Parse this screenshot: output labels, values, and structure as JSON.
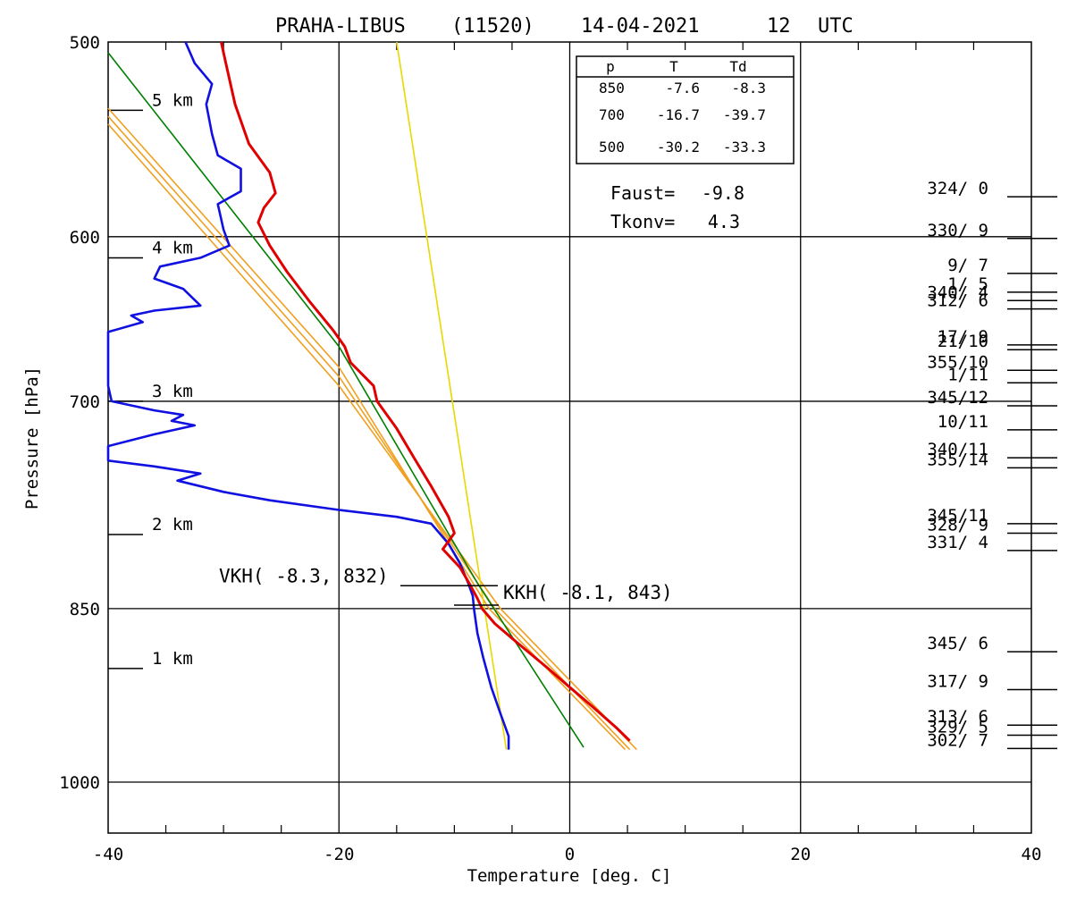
{
  "title": {
    "station": "PRAHA-LIBUS",
    "station_id": "(11520)",
    "date": "14-04-2021",
    "hour": "12",
    "tz": "UTC"
  },
  "colors": {
    "temperature": "#e00000",
    "dewpoint": "#1010e0",
    "dry_adiabat": "#f0a020",
    "moist_line": "#008000",
    "mixing_line": "#e8d800",
    "grid": "#000000"
  },
  "chart_data": {
    "type": "line",
    "xlabel": "Temperature [deg. C]",
    "ylabel": "Pressure [hPa]",
    "xlim": [
      -40,
      40
    ],
    "ylim": [
      1000,
      500
    ],
    "y_scale": "log",
    "x_ticks": [
      "-40",
      "-20",
      "0",
      "20",
      "40"
    ],
    "y_ticks": [
      "500",
      "600",
      "700",
      "850",
      "1000"
    ],
    "grid": true,
    "height_marks": [
      {
        "label": "5 km",
        "p": 533
      },
      {
        "label": "4 km",
        "p": 612
      },
      {
        "label": "3 km",
        "p": 700
      },
      {
        "label": "2 km",
        "p": 793
      },
      {
        "label": "1 km",
        "p": 899
      }
    ],
    "table": {
      "headers": [
        "p",
        "T",
        "Td"
      ],
      "rows": [
        [
          "850",
          "-7.6",
          "-8.3"
        ],
        [
          "700",
          "-16.7",
          "-39.7"
        ],
        [
          "500",
          "-30.2",
          "-33.3"
        ]
      ]
    },
    "info": [
      {
        "label": "Faust=",
        "value": "-9.8"
      },
      {
        "label": "Tkonv=",
        "value": "4.3"
      }
    ],
    "levels": [
      {
        "label": "VKH( -8.3, 832)",
        "t": -8.3,
        "p": 832
      },
      {
        "label": "KKH( -8.1, 843)",
        "t": -8.1,
        "p": 843
      }
    ],
    "winds": [
      {
        "label": "324/ 0",
        "p": 578
      },
      {
        "label": "330/ 9",
        "p": 601
      },
      {
        "label": "9/ 7",
        "p": 621
      },
      {
        "label": "1/ 5",
        "p": 632
      },
      {
        "label": "340/ 4",
        "p": 637
      },
      {
        "label": "312/ 6",
        "p": 642
      },
      {
        "label": "17/ 9",
        "p": 664
      },
      {
        "label": "21/10",
        "p": 667
      },
      {
        "label": "355/10",
        "p": 680
      },
      {
        "label": "1/11",
        "p": 688
      },
      {
        "label": "345/12",
        "p": 703
      },
      {
        "label": "10/11",
        "p": 719
      },
      {
        "label": "340/11",
        "p": 738
      },
      {
        "label": "355/14",
        "p": 745
      },
      {
        "label": "345/11",
        "p": 785
      },
      {
        "label": "328/ 9",
        "p": 792
      },
      {
        "label": "331/ 4",
        "p": 805
      },
      {
        "label": "345/ 6",
        "p": 885
      },
      {
        "label": "317/ 9",
        "p": 917
      },
      {
        "label": "313/ 6",
        "p": 948
      },
      {
        "label": "329/ 5",
        "p": 957
      },
      {
        "label": "302/ 7",
        "p": 969
      }
    ],
    "series": [
      {
        "name": "T",
        "points": [
          [
            -30.2,
            500
          ],
          [
            -29.8,
            510
          ],
          [
            -29.0,
            530
          ],
          [
            -27.8,
            550
          ],
          [
            -26.0,
            565
          ],
          [
            -25.5,
            576
          ],
          [
            -26.5,
            584
          ],
          [
            -27.0,
            592
          ],
          [
            -26.0,
            605
          ],
          [
            -24.5,
            620
          ],
          [
            -22.5,
            638
          ],
          [
            -20.5,
            655
          ],
          [
            -19.5,
            665
          ],
          [
            -19.0,
            675
          ],
          [
            -17.0,
            690
          ],
          [
            -16.7,
            700
          ],
          [
            -15.0,
            718
          ],
          [
            -13.5,
            738
          ],
          [
            -12.0,
            758
          ],
          [
            -10.5,
            780
          ],
          [
            -10.0,
            792
          ],
          [
            -11.0,
            804
          ],
          [
            -9.5,
            818
          ],
          [
            -8.6,
            832
          ],
          [
            -8.0,
            842
          ],
          [
            -7.6,
            850
          ],
          [
            -6.5,
            862
          ],
          [
            -4.5,
            878
          ],
          [
            -2.0,
            898
          ],
          [
            0.0,
            915
          ],
          [
            2.0,
            932
          ],
          [
            4.0,
            950
          ],
          [
            5.2,
            962
          ]
        ]
      },
      {
        "name": "Td",
        "points": [
          [
            -33.3,
            500
          ],
          [
            -32.5,
            510
          ],
          [
            -31.0,
            520
          ],
          [
            -31.5,
            530
          ],
          [
            -31.0,
            545
          ],
          [
            -30.5,
            556
          ],
          [
            -28.5,
            563
          ],
          [
            -28.5,
            575
          ],
          [
            -30.5,
            582
          ],
          [
            -30.0,
            596
          ],
          [
            -29.5,
            605
          ],
          [
            -32.0,
            612
          ],
          [
            -35.5,
            617
          ],
          [
            -36.0,
            624
          ],
          [
            -33.5,
            630
          ],
          [
            -32.0,
            640
          ],
          [
            -36.0,
            643
          ],
          [
            -38.0,
            646
          ],
          [
            -37.0,
            650
          ],
          [
            -40.0,
            656
          ],
          [
            -40.0,
            670
          ],
          [
            -40.0,
            690
          ],
          [
            -39.7,
            700
          ],
          [
            -36.0,
            706
          ],
          [
            -33.5,
            709
          ],
          [
            -34.5,
            713
          ],
          [
            -32.5,
            716
          ],
          [
            -36.0,
            722
          ],
          [
            -38.5,
            727
          ],
          [
            -40.0,
            730
          ],
          [
            -40.0,
            740
          ],
          [
            -36.0,
            744
          ],
          [
            -32.0,
            749
          ],
          [
            -34.0,
            754
          ],
          [
            -30.0,
            762
          ],
          [
            -26.0,
            768
          ],
          [
            -20.0,
            775
          ],
          [
            -15.0,
            780
          ],
          [
            -12.0,
            785
          ],
          [
            -10.5,
            800
          ],
          [
            -9.5,
            815
          ],
          [
            -8.8,
            830
          ],
          [
            -8.4,
            840
          ],
          [
            -8.3,
            850
          ],
          [
            -8.0,
            870
          ],
          [
            -7.5,
            890
          ],
          [
            -6.8,
            915
          ],
          [
            -6.0,
            938
          ],
          [
            -5.3,
            958
          ],
          [
            -5.3,
            970
          ]
        ]
      },
      {
        "name": "adiabat-1",
        "points": [
          [
            -40.0,
            536
          ],
          [
            -20.0,
            684
          ],
          [
            -6.5,
            850
          ],
          [
            5.2,
            970
          ]
        ]
      },
      {
        "name": "adiabat-2",
        "points": [
          [
            -40.0,
            540
          ],
          [
            -20.0,
            690
          ],
          [
            -6.0,
            850
          ],
          [
            5.8,
            970
          ]
        ]
      },
      {
        "name": "adiabat-3",
        "points": [
          [
            -40.0,
            532
          ],
          [
            -20.0,
            678
          ],
          [
            -7.0,
            850
          ],
          [
            4.8,
            970
          ]
        ]
      },
      {
        "name": "moist",
        "points": [
          [
            -40.0,
            505
          ],
          [
            -20.0,
            665
          ],
          [
            -8.0,
            830
          ],
          [
            1.2,
            968
          ]
        ]
      },
      {
        "name": "mixing",
        "points": [
          [
            -15.0,
            500
          ],
          [
            -5.5,
            970
          ]
        ]
      }
    ]
  }
}
